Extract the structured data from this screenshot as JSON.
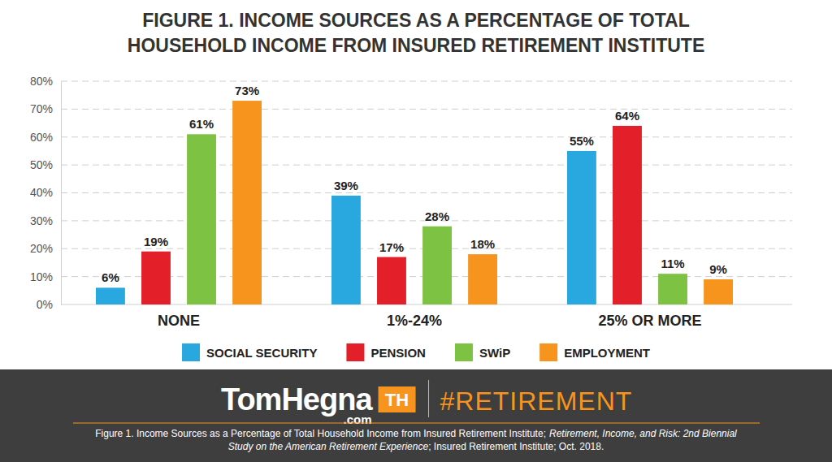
{
  "chart_data": {
    "type": "bar",
    "title": [
      "FIGURE 1. INCOME SOURCES AS A PERCENTAGE OF TOTAL",
      "HOUSEHOLD INCOME FROM INSURED RETIREMENT INSTITUTE"
    ],
    "categories": [
      "NONE",
      "1%-24%",
      "25% OR MORE"
    ],
    "series": [
      {
        "name": "SOCIAL SECURITY",
        "color": "#29a8e0",
        "values": [
          6,
          39,
          55
        ],
        "value_labels": [
          "6%",
          "39%",
          "55%"
        ]
      },
      {
        "name": "PENSION",
        "color": "#e3202a",
        "values": [
          19,
          17,
          64
        ],
        "value_labels": [
          "19%",
          "17%",
          "64%"
        ]
      },
      {
        "name": "SWiP",
        "color": "#7dc242",
        "values": [
          61,
          28,
          11
        ],
        "value_labels": [
          "61%",
          "28%",
          "11%"
        ]
      },
      {
        "name": "EMPLOYMENT",
        "color": "#f7941d",
        "values": [
          73,
          18,
          9
        ],
        "value_labels": [
          "73%",
          "18%",
          "9%"
        ]
      }
    ],
    "ylim": [
      0,
      80
    ],
    "yticks": [
      {
        "value": 0,
        "label": "0%"
      },
      {
        "value": 10,
        "label": "10%"
      },
      {
        "value": 20,
        "label": "20%"
      },
      {
        "value": 30,
        "label": "30%"
      },
      {
        "value": 40,
        "label": "40%"
      },
      {
        "value": 50,
        "label": "50%"
      },
      {
        "value": 60,
        "label": "60%"
      },
      {
        "value": 70,
        "label": "70%"
      },
      {
        "value": 80,
        "label": "80%"
      }
    ],
    "grid": true,
    "data_labels": true,
    "legend": "bottom",
    "annotations": [
      "TomHegna",
      ".com",
      "TH",
      "#RETIREMENT",
      "Figure 1. Income Sources as a Percentage of Total Household Income from Insured Retirement Institute;",
      "Retirement, Income, and Risk: 2nd Biennial",
      "Study on the American Retirement Experience",
      "; Insured Retirement Institute; Oct. 2018."
    ]
  }
}
